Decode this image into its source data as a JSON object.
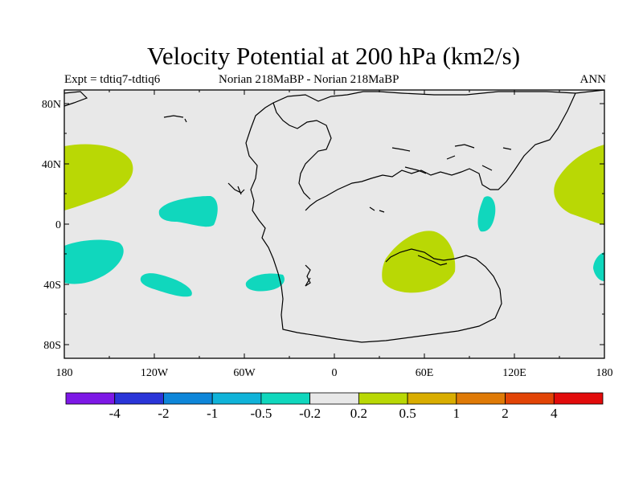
{
  "title": "Velocity Potential at 200 hPa (km2/s)",
  "subtitle_left": "Expt = tdtiq7-tdtiq6",
  "subtitle_center": "Norian   218MaBP - Norian   218MaBP",
  "subtitle_right": "ANN",
  "map": {
    "background_color": "#e8e8e8",
    "lat_ticks": [
      "80N",
      "40N",
      "0",
      "40S",
      "80S"
    ],
    "lon_ticks": [
      "180",
      "120W",
      "60W",
      "0",
      "60E",
      "120E",
      "180"
    ]
  },
  "colorbar": {
    "colors": [
      "#7d18e6",
      "#2a35d8",
      "#0e86d9",
      "#10b3d9",
      "#10d7bd",
      "#e8e8e8",
      "#b9d805",
      "#d9ad00",
      "#df7a06",
      "#e24406",
      "#e20b0b"
    ],
    "labels": [
      "-4",
      "-2",
      "-1",
      "-0.5",
      "-0.2",
      "0.2",
      "0.5",
      "1",
      "2",
      "4"
    ]
  },
  "regions": {
    "positive_color": "#b9d805",
    "negative_color": "#10d7bd"
  }
}
